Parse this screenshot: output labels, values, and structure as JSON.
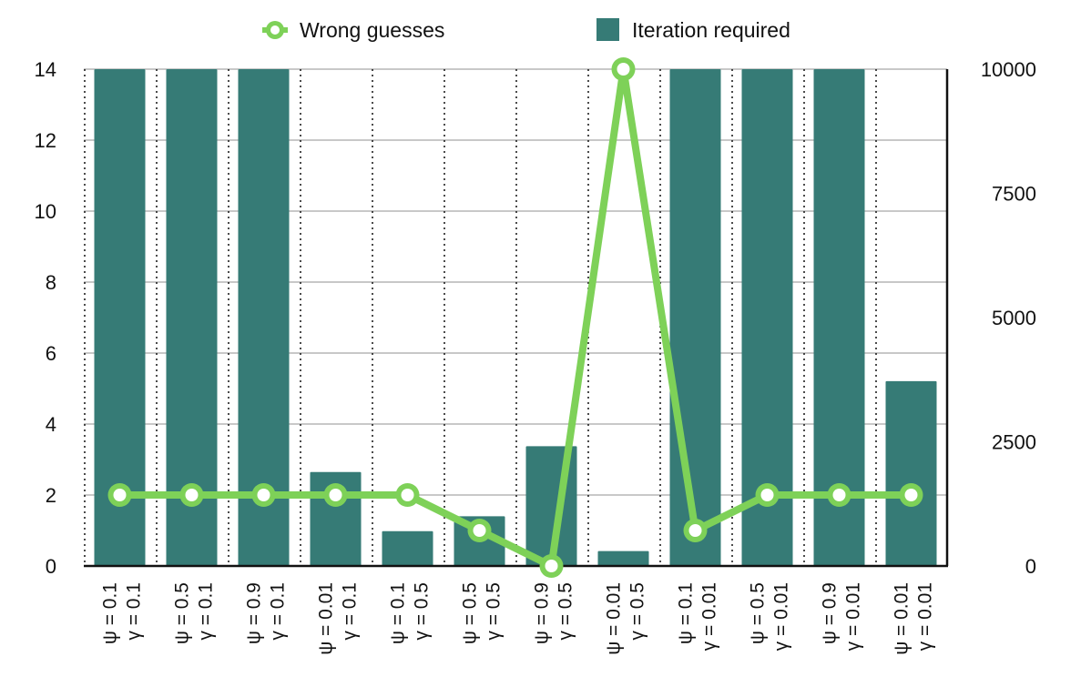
{
  "chart_data": {
    "type": "bar",
    "categories": [
      [
        "ψ = 0.1",
        "γ = 0.1"
      ],
      [
        "ψ = 0.5",
        "γ = 0.1"
      ],
      [
        "ψ = 0.9",
        "γ = 0.1"
      ],
      [
        "ψ = 0.01",
        "γ = 0.1"
      ],
      [
        "ψ = 0.1",
        "γ = 0.5"
      ],
      [
        "ψ = 0.5",
        "γ = 0.5"
      ],
      [
        "ψ = 0.9",
        "γ = 0.5"
      ],
      [
        "ψ = 0.01",
        "γ = 0.5"
      ],
      [
        "ψ = 0.1",
        "γ = 0.01"
      ],
      [
        "ψ = 0.5",
        "γ = 0.01"
      ],
      [
        "ψ = 0.9",
        "γ = 0.01"
      ],
      [
        "ψ = 0.01",
        "γ = 0.01"
      ]
    ],
    "series": [
      {
        "name": "Iteration required",
        "kind": "bar",
        "axis": "right",
        "color": "#367b76",
        "values": [
          10000,
          10000,
          10000,
          1890,
          700,
          1000,
          2410,
          300,
          10000,
          10000,
          10000,
          3720
        ]
      },
      {
        "name": "Wrong guesses",
        "kind": "line",
        "axis": "left",
        "color": "#7ed158",
        "values": [
          2,
          2,
          2,
          2,
          2,
          1,
          0,
          14,
          1,
          2,
          2,
          2
        ]
      }
    ],
    "left_axis": {
      "min": 0,
      "max": 14,
      "ticks": [
        "0",
        "2",
        "4",
        "6",
        "8",
        "10",
        "12",
        "14"
      ]
    },
    "right_axis": {
      "min": 0,
      "max": 10000,
      "ticks": [
        "0",
        "2500",
        "5000",
        "7500",
        "10000"
      ]
    },
    "grid": true,
    "legend_position": "top-center"
  }
}
